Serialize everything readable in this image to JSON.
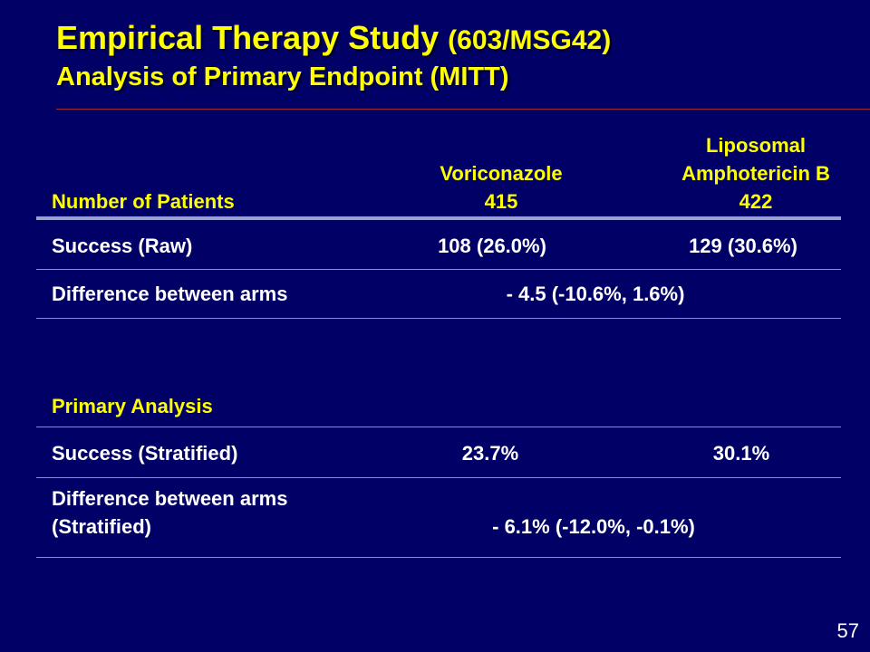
{
  "title": {
    "main": "Empirical Therapy Study",
    "code": "(603/MSG42)",
    "subtitle": "Analysis of Primary Endpoint (MITT)"
  },
  "table": {
    "header": {
      "row_label": "Number of Patients",
      "col1_name": "Voriconazole",
      "col1_n": "415",
      "col2_name_line1": "Liposomal",
      "col2_name_line2": "Amphotericin B",
      "col2_n": "422"
    },
    "success_raw": {
      "label": "Success (Raw)",
      "col1": "108 (26.0%)",
      "col2": "129 (30.6%)"
    },
    "difference_raw": {
      "label": "Difference between arms",
      "value": "- 4.5 (-10.6%, 1.6%)"
    },
    "primary_analysis": {
      "label": "Primary Analysis"
    },
    "success_stratified": {
      "label": "Success (Stratified)",
      "col1": "23.7%",
      "col2": "30.1%"
    },
    "difference_stratified": {
      "label_line1": "Difference between arms",
      "label_line2": "(Stratified)",
      "value": "- 6.1% (-12.0%, -0.1%)"
    }
  },
  "page_number": "57",
  "colors": {
    "background": "#000066",
    "accent": "#ffff00",
    "text": "#ffffff"
  }
}
